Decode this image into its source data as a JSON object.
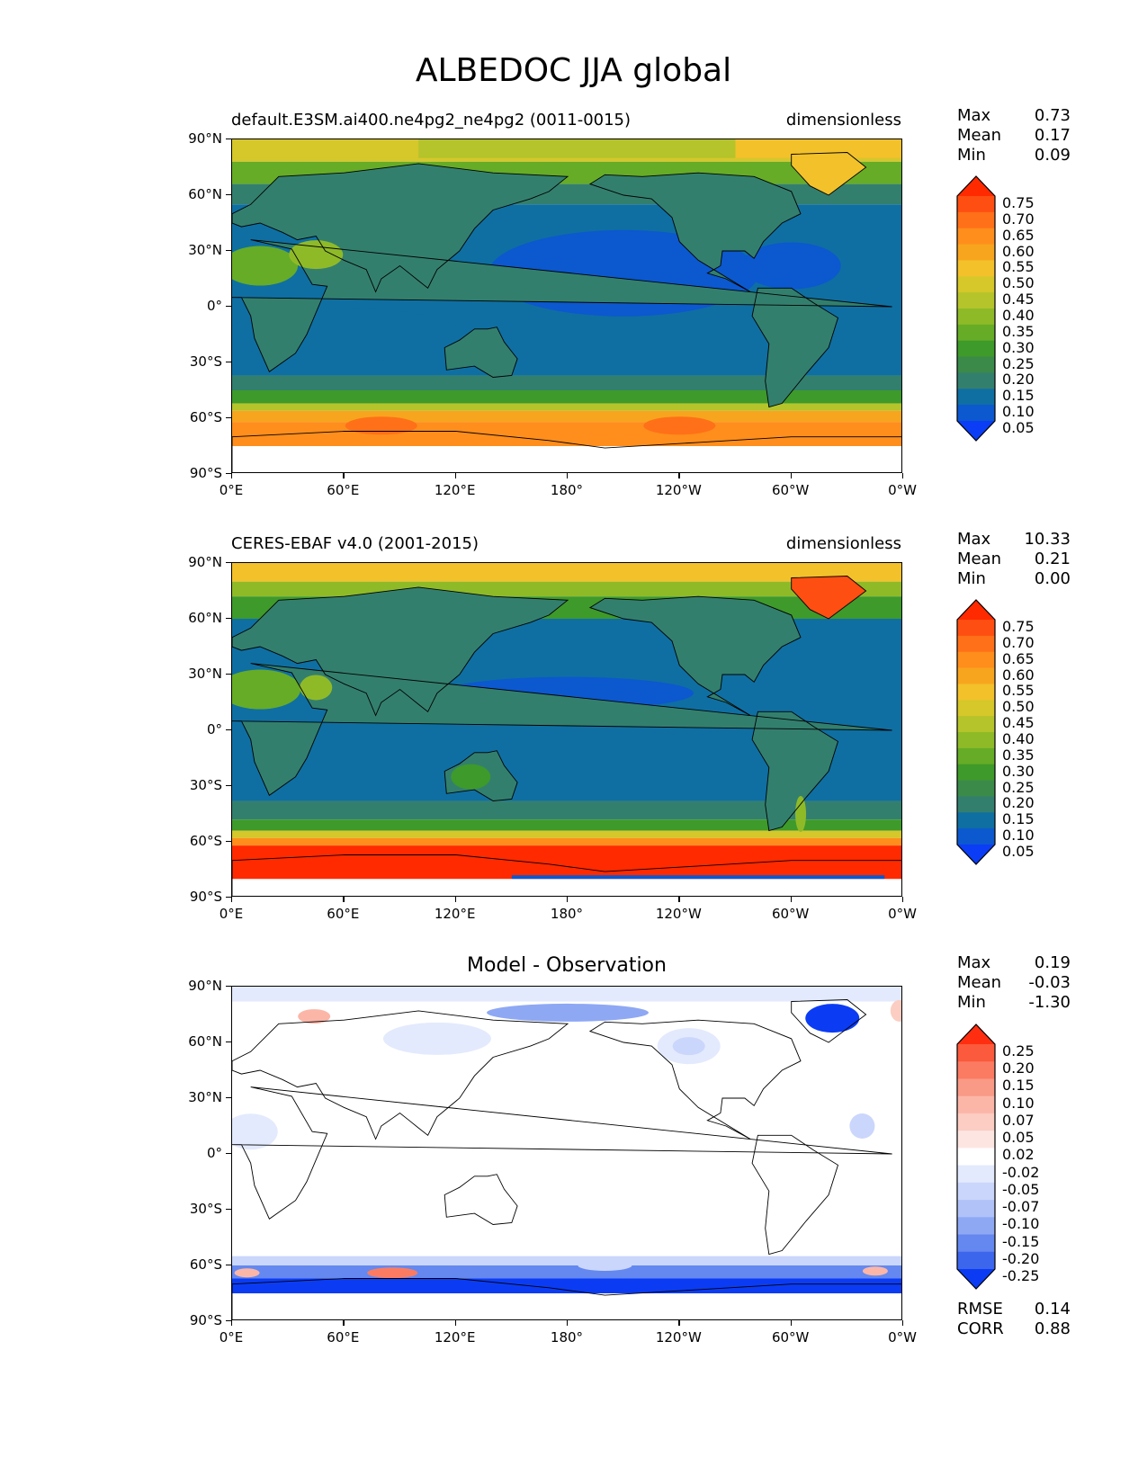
{
  "figure": {
    "title": "ALBEDOC JJA global"
  },
  "axes": {
    "lat_ticks": [
      "90°N",
      "60°N",
      "30°N",
      "0°",
      "30°S",
      "60°S",
      "90°S"
    ],
    "lon_ticks": [
      "0°E",
      "60°E",
      "120°E",
      "180°",
      "120°W",
      "60°W",
      "0°W"
    ]
  },
  "panels": [
    {
      "id": "model",
      "title_left": "default.E3SM.ai400.ne4pg2_ne4pg2 (0011-0015)",
      "title_right": "dimensionless",
      "title_center": "",
      "stats": [
        {
          "label": "Max",
          "value": "0.73"
        },
        {
          "label": "Mean",
          "value": "0.17"
        },
        {
          "label": "Min",
          "value": "0.09"
        }
      ],
      "colorbar": {
        "labels": [
          "0.75",
          "0.70",
          "0.65",
          "0.60",
          "0.55",
          "0.50",
          "0.45",
          "0.40",
          "0.35",
          "0.30",
          "0.25",
          "0.20",
          "0.15",
          "0.10",
          "0.05"
        ],
        "colors": [
          "#ff2a00",
          "#ff4e12",
          "#ff7018",
          "#ff8e1c",
          "#f7a51e",
          "#f3c12a",
          "#d6c72a",
          "#b4c42a",
          "#8fba28",
          "#66ac26",
          "#3e9a2a",
          "#3b8a4a",
          "#337f6e",
          "#0f6fa2",
          "#0c58cf",
          "#0a3df5"
        ]
      }
    },
    {
      "id": "obs",
      "title_left": "CERES-EBAF v4.0 (2001-2015)",
      "title_right": "dimensionless",
      "title_center": "",
      "stats": [
        {
          "label": "Max",
          "value": "10.33"
        },
        {
          "label": "Mean",
          "value": "0.21"
        },
        {
          "label": "Min",
          "value": "0.00"
        }
      ],
      "colorbar": {
        "labels": [
          "0.75",
          "0.70",
          "0.65",
          "0.60",
          "0.55",
          "0.50",
          "0.45",
          "0.40",
          "0.35",
          "0.30",
          "0.25",
          "0.20",
          "0.15",
          "0.10",
          "0.05"
        ],
        "colors": [
          "#ff2a00",
          "#ff4e12",
          "#ff7018",
          "#ff8e1c",
          "#f7a51e",
          "#f3c12a",
          "#d6c72a",
          "#b4c42a",
          "#8fba28",
          "#66ac26",
          "#3e9a2a",
          "#3b8a4a",
          "#337f6e",
          "#0f6fa2",
          "#0c58cf",
          "#0a3df5"
        ]
      }
    },
    {
      "id": "diff",
      "title_left": "",
      "title_right": "",
      "title_center": "Model - Observation",
      "stats": [
        {
          "label": "Max",
          "value": "0.19"
        },
        {
          "label": "Mean",
          "value": "-0.03"
        },
        {
          "label": "Min",
          "value": "-1.30"
        }
      ],
      "colorbar": {
        "labels": [
          "0.25",
          "0.20",
          "0.15",
          "0.10",
          "0.07",
          "0.05",
          "0.02",
          "-0.02",
          "-0.05",
          "-0.07",
          "-0.10",
          "-0.15",
          "-0.20",
          "-0.25"
        ],
        "colors": [
          "#ff2e10",
          "#fb5a3c",
          "#fa7b62",
          "#f99a86",
          "#fbb6a8",
          "#fccdc2",
          "#fde6e1",
          "#ffffff",
          "#e3eafd",
          "#cad6fb",
          "#b1c2f8",
          "#8ea8f4",
          "#6488ef",
          "#3c66ec",
          "#0b3cf4"
        ]
      },
      "footer_stats": [
        {
          "label": "RMSE",
          "value": "0.14"
        },
        {
          "label": "CORR",
          "value": "0.88"
        }
      ]
    }
  ]
}
